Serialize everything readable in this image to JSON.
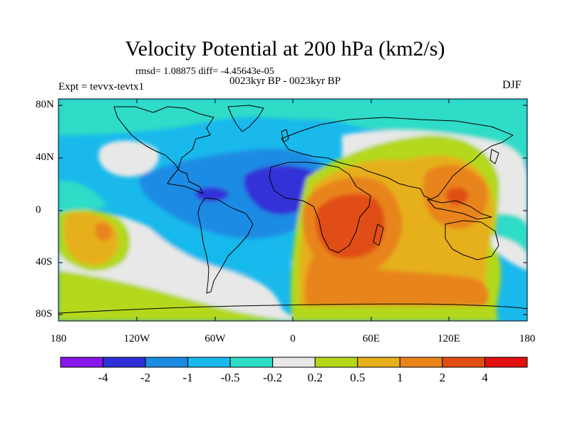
{
  "title": "Velocity Potential at 200 hPa (km2/s)",
  "stats": "rmsd= 1.08875 diff= -4.45643e-05",
  "period": "0023kyr BP - 0023kyr BP",
  "experiment": "Expt = tevvx-tevtx1",
  "season": "DJF",
  "lat_labels": [
    "80N",
    "40N",
    "0",
    "40S",
    "80S"
  ],
  "lon_labels": [
    "180",
    "120W",
    "60W",
    "0",
    "60E",
    "120E",
    "180"
  ],
  "colorbar": {
    "labels": [
      "-4",
      "-2",
      "-1",
      "-0.5",
      "-0.2",
      "0.2",
      "0.5",
      "1",
      "2",
      "4"
    ],
    "colors": [
      "#8a17ea",
      "#3030d8",
      "#1c8be4",
      "#19b9ec",
      "#2edcc7",
      "#e8e8e8",
      "#b3d81a",
      "#e6b01a",
      "#e8841a",
      "#e04e12",
      "#e01010"
    ]
  },
  "palette": {
    "light_blue": "#19b9ec",
    "mid_blue": "#1c8be4",
    "deep_blue": "#3030d8",
    "teal": "#2edcc7",
    "neutral": "#e8e8e8",
    "yellow_green": "#b3d81a",
    "gold": "#e6b01a",
    "orange": "#e8841a",
    "red_orange": "#e04e12",
    "red": "#e01010"
  }
}
